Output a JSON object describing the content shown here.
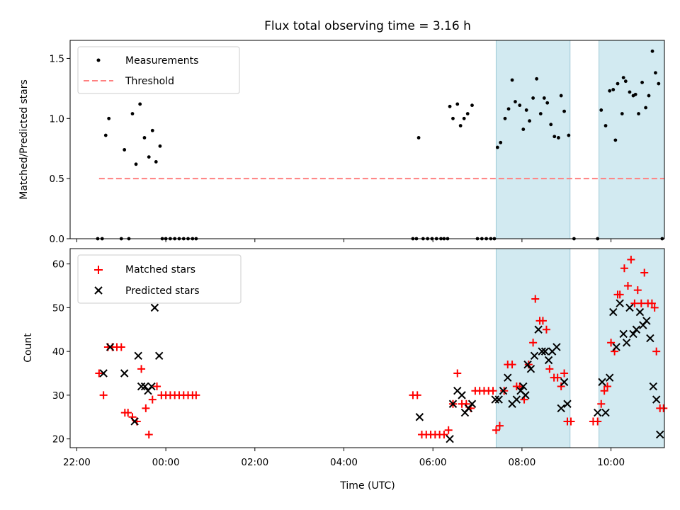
{
  "chart_data": [
    {
      "type": "scatter",
      "title": "Flux total observing time = 3.16 h",
      "xlabel": "",
      "ylabel": "Matched/Predicted stars",
      "xlim": [
        21.85,
        35.2
      ],
      "ylim": [
        0,
        1.65
      ],
      "yticks": [
        0.0,
        0.5,
        1.0,
        1.5
      ],
      "xticks": [
        22,
        24,
        26,
        28,
        30,
        32,
        34
      ],
      "xtick_labels_shown": false,
      "grid": false,
      "legend": "upper-left",
      "shaded_intervals_h": [
        [
          31.42,
          33.08
        ],
        [
          33.73,
          35.23
        ]
      ],
      "shade_color": "#add8e6",
      "series": [
        {
          "name": "Measurements",
          "color": "#000000",
          "marker": "dot",
          "points": [
            [
              22.47,
              0
            ],
            [
              22.57,
              0
            ],
            [
              22.65,
              0.86
            ],
            [
              22.72,
              1.0
            ],
            [
              23.0,
              0
            ],
            [
              23.07,
              0.74
            ],
            [
              23.17,
              0
            ],
            [
              23.25,
              1.04
            ],
            [
              23.33,
              0.62
            ],
            [
              23.42,
              1.12
            ],
            [
              23.52,
              0.84
            ],
            [
              23.62,
              0.68
            ],
            [
              23.7,
              0.9
            ],
            [
              23.78,
              0.64
            ],
            [
              23.87,
              0.77
            ],
            [
              23.92,
              0
            ],
            [
              24.0,
              0
            ],
            [
              24.1,
              0
            ],
            [
              24.2,
              0
            ],
            [
              24.3,
              0
            ],
            [
              24.4,
              0
            ],
            [
              24.5,
              0
            ],
            [
              24.6,
              0
            ],
            [
              24.68,
              0
            ],
            [
              29.55,
              0
            ],
            [
              29.63,
              0
            ],
            [
              29.68,
              0.84
            ],
            [
              29.78,
              0
            ],
            [
              29.88,
              0
            ],
            [
              29.98,
              0
            ],
            [
              30.08,
              0
            ],
            [
              30.18,
              0
            ],
            [
              30.25,
              0
            ],
            [
              30.33,
              0
            ],
            [
              30.38,
              1.1
            ],
            [
              30.45,
              1.0
            ],
            [
              30.55,
              1.12
            ],
            [
              30.62,
              0.94
            ],
            [
              30.7,
              1.0
            ],
            [
              30.78,
              1.04
            ],
            [
              30.88,
              1.11
            ],
            [
              31.0,
              0
            ],
            [
              31.1,
              0
            ],
            [
              31.2,
              0
            ],
            [
              31.3,
              0
            ],
            [
              31.38,
              0
            ],
            [
              31.45,
              0.76
            ],
            [
              31.52,
              0.8
            ],
            [
              31.62,
              1.0
            ],
            [
              31.7,
              1.08
            ],
            [
              31.78,
              1.32
            ],
            [
              31.85,
              1.14
            ],
            [
              31.95,
              1.11
            ],
            [
              32.03,
              0.91
            ],
            [
              32.1,
              1.07
            ],
            [
              32.17,
              0.98
            ],
            [
              32.25,
              1.17
            ],
            [
              32.33,
              1.33
            ],
            [
              32.42,
              1.04
            ],
            [
              32.5,
              1.17
            ],
            [
              32.57,
              1.13
            ],
            [
              32.65,
              0.95
            ],
            [
              32.73,
              0.85
            ],
            [
              32.82,
              0.84
            ],
            [
              32.88,
              1.19
            ],
            [
              32.95,
              1.06
            ],
            [
              33.05,
              0.86
            ],
            [
              33.17,
              0
            ],
            [
              33.7,
              0
            ],
            [
              33.78,
              1.07
            ],
            [
              33.88,
              0.94
            ],
            [
              33.97,
              1.23
            ],
            [
              34.05,
              1.24
            ],
            [
              34.1,
              0.82
            ],
            [
              34.15,
              1.29
            ],
            [
              34.25,
              1.04
            ],
            [
              34.28,
              1.34
            ],
            [
              34.33,
              1.31
            ],
            [
              34.42,
              1.22
            ],
            [
              34.5,
              1.19
            ],
            [
              34.55,
              1.2
            ],
            [
              34.62,
              1.04
            ],
            [
              34.7,
              1.3
            ],
            [
              34.78,
              1.09
            ],
            [
              34.85,
              1.19
            ],
            [
              34.93,
              1.56
            ],
            [
              35.0,
              1.38
            ],
            [
              35.07,
              1.29
            ],
            [
              35.15,
              0
            ]
          ]
        },
        {
          "name": "Threshold",
          "color": "#ff8080",
          "style": "dashed",
          "points": [
            [
              22.5,
              0.5
            ],
            [
              35.25,
              0.5
            ]
          ]
        }
      ]
    },
    {
      "type": "scatter",
      "xlabel": "Time (UTC)",
      "ylabel": "Count",
      "xlim": [
        21.85,
        35.2
      ],
      "ylim": [
        18,
        63.5
      ],
      "yticks": [
        20,
        30,
        40,
        50,
        60
      ],
      "xticks": [
        22,
        24,
        26,
        28,
        30,
        32,
        34
      ],
      "xtick_labels": [
        "22:00",
        "00:00",
        "02:00",
        "04:00",
        "06:00",
        "08:00",
        "10:00"
      ],
      "grid": false,
      "legend": "upper-left",
      "shaded_intervals_h": [
        [
          31.42,
          33.08
        ],
        [
          33.73,
          35.23
        ]
      ],
      "shade_color": "#add8e6",
      "series": [
        {
          "name": "Matched stars",
          "color": "#ff0000",
          "marker": "plus",
          "points": [
            [
              22.5,
              35
            ],
            [
              22.6,
              30
            ],
            [
              22.7,
              41
            ],
            [
              22.8,
              41
            ],
            [
              22.9,
              41
            ],
            [
              23.0,
              41
            ],
            [
              23.08,
              26
            ],
            [
              23.15,
              26
            ],
            [
              23.25,
              25
            ],
            [
              23.35,
              24
            ],
            [
              23.45,
              36
            ],
            [
              23.55,
              27
            ],
            [
              23.62,
              21
            ],
            [
              23.7,
              29
            ],
            [
              23.8,
              32
            ],
            [
              23.9,
              30
            ],
            [
              24.0,
              30
            ],
            [
              24.1,
              30
            ],
            [
              24.2,
              30
            ],
            [
              24.3,
              30
            ],
            [
              24.4,
              30
            ],
            [
              24.5,
              30
            ],
            [
              24.6,
              30
            ],
            [
              24.68,
              30
            ],
            [
              29.55,
              30
            ],
            [
              29.65,
              30
            ],
            [
              29.75,
              21
            ],
            [
              29.85,
              21
            ],
            [
              29.95,
              21
            ],
            [
              30.05,
              21
            ],
            [
              30.15,
              21
            ],
            [
              30.25,
              21
            ],
            [
              30.35,
              22
            ],
            [
              30.45,
              28
            ],
            [
              30.55,
              35
            ],
            [
              30.65,
              28
            ],
            [
              30.75,
              28
            ],
            [
              30.85,
              27
            ],
            [
              30.95,
              31
            ],
            [
              31.05,
              31
            ],
            [
              31.15,
              31
            ],
            [
              31.25,
              31
            ],
            [
              31.35,
              31
            ],
            [
              31.42,
              22
            ],
            [
              31.5,
              23
            ],
            [
              31.6,
              31
            ],
            [
              31.68,
              37
            ],
            [
              31.78,
              37
            ],
            [
              31.88,
              32
            ],
            [
              31.95,
              32
            ],
            [
              32.05,
              29
            ],
            [
              32.15,
              37
            ],
            [
              32.25,
              42
            ],
            [
              32.3,
              52
            ],
            [
              32.4,
              47
            ],
            [
              32.47,
              47
            ],
            [
              32.55,
              45
            ],
            [
              32.62,
              36
            ],
            [
              32.72,
              34
            ],
            [
              32.8,
              34
            ],
            [
              32.88,
              32
            ],
            [
              32.95,
              35
            ],
            [
              33.02,
              24
            ],
            [
              33.1,
              24
            ],
            [
              33.6,
              24
            ],
            [
              33.7,
              24
            ],
            [
              33.78,
              28
            ],
            [
              33.85,
              31
            ],
            [
              33.92,
              32
            ],
            [
              34.0,
              42
            ],
            [
              34.08,
              40
            ],
            [
              34.15,
              53
            ],
            [
              34.2,
              53
            ],
            [
              34.3,
              59
            ],
            [
              34.38,
              55
            ],
            [
              34.45,
              61
            ],
            [
              34.53,
              51
            ],
            [
              34.6,
              54
            ],
            [
              34.68,
              51
            ],
            [
              34.75,
              58
            ],
            [
              34.83,
              51
            ],
            [
              34.92,
              51
            ],
            [
              34.98,
              50
            ],
            [
              35.02,
              40
            ],
            [
              35.1,
              27
            ],
            [
              35.18,
              27
            ]
          ]
        },
        {
          "name": "Predicted stars",
          "color": "#000000",
          "marker": "x",
          "points": [
            [
              22.6,
              35
            ],
            [
              22.75,
              41
            ],
            [
              23.07,
              35
            ],
            [
              23.3,
              24
            ],
            [
              23.38,
              39
            ],
            [
              23.45,
              32
            ],
            [
              23.53,
              32
            ],
            [
              23.6,
              31
            ],
            [
              23.68,
              32
            ],
            [
              23.75,
              50
            ],
            [
              23.85,
              39
            ],
            [
              29.7,
              25
            ],
            [
              30.38,
              20
            ],
            [
              30.45,
              28
            ],
            [
              30.55,
              31
            ],
            [
              30.65,
              30
            ],
            [
              30.72,
              26
            ],
            [
              30.8,
              27
            ],
            [
              30.88,
              28
            ],
            [
              31.4,
              29
            ],
            [
              31.48,
              29
            ],
            [
              31.58,
              31
            ],
            [
              31.68,
              34
            ],
            [
              31.78,
              28
            ],
            [
              31.88,
              29
            ],
            [
              31.97,
              31
            ],
            [
              32.03,
              32
            ],
            [
              32.08,
              30
            ],
            [
              32.13,
              37
            ],
            [
              32.2,
              36
            ],
            [
              32.28,
              39
            ],
            [
              32.37,
              45
            ],
            [
              32.45,
              40
            ],
            [
              32.52,
              40
            ],
            [
              32.6,
              38
            ],
            [
              32.68,
              40
            ],
            [
              32.78,
              41
            ],
            [
              32.88,
              27
            ],
            [
              32.95,
              33
            ],
            [
              33.02,
              28
            ],
            [
              33.7,
              26
            ],
            [
              33.8,
              33
            ],
            [
              33.88,
              26
            ],
            [
              33.97,
              34
            ],
            [
              34.05,
              49
            ],
            [
              34.12,
              41
            ],
            [
              34.2,
              51
            ],
            [
              34.28,
              44
            ],
            [
              34.35,
              42
            ],
            [
              34.42,
              50
            ],
            [
              34.5,
              44
            ],
            [
              34.57,
              45
            ],
            [
              34.65,
              49
            ],
            [
              34.72,
              46
            ],
            [
              34.8,
              47
            ],
            [
              34.88,
              43
            ],
            [
              34.95,
              32
            ],
            [
              35.02,
              29
            ],
            [
              35.1,
              21
            ]
          ]
        }
      ]
    }
  ]
}
